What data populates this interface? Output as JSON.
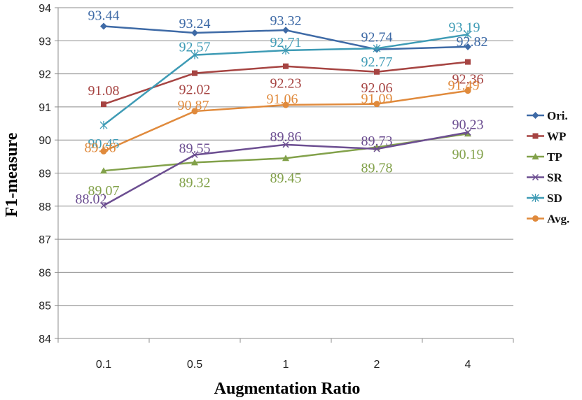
{
  "chart_data": {
    "type": "line",
    "title": "",
    "xlabel": "Augmentation Ratio",
    "ylabel": "F1-measure",
    "categories": [
      "0.1",
      "0.5",
      "1",
      "2",
      "4"
    ],
    "ylim": [
      84,
      94
    ],
    "yticks": [
      "84",
      "85",
      "86",
      "87",
      "88",
      "89",
      "90",
      "91",
      "92",
      "93",
      "94"
    ],
    "grid": "horizontal",
    "legend_position": "right",
    "series": [
      {
        "name": "Ori.",
        "color": "#3E6AA6",
        "marker": "diamond",
        "values": [
          93.44,
          93.24,
          93.32,
          92.74,
          92.82
        ],
        "labels": [
          "93.44",
          "93.24",
          "93.32",
          "92.74",
          "92.82"
        ]
      },
      {
        "name": "WP",
        "color": "#A64442",
        "marker": "square",
        "values": [
          91.08,
          92.02,
          92.23,
          92.06,
          92.36
        ],
        "labels": [
          "91.08",
          "92.02",
          "92.23",
          "92.06",
          "92.36"
        ]
      },
      {
        "name": "TP",
        "color": "#82A14A",
        "marker": "triangle",
        "values": [
          89.07,
          89.32,
          89.45,
          89.78,
          90.19
        ],
        "labels": [
          "89.07",
          "89.32",
          "89.45",
          "89.78",
          "90.19"
        ]
      },
      {
        "name": "SR",
        "color": "#6C4E91",
        "marker": "x",
        "values": [
          88.02,
          89.55,
          89.86,
          89.73,
          90.23
        ],
        "labels": [
          "88.02",
          "89.55",
          "89.86",
          "89.73",
          "90.23"
        ]
      },
      {
        "name": "SD",
        "color": "#3E9BB5",
        "marker": "star",
        "values": [
          90.45,
          92.57,
          92.71,
          92.77,
          93.19
        ],
        "labels": [
          "90.45",
          "92.57",
          "92.71",
          "92.77",
          "93.19"
        ]
      },
      {
        "name": "Avg.",
        "color": "#E08A3C",
        "marker": "circle",
        "values": [
          89.66,
          90.87,
          91.06,
          91.09,
          91.49
        ],
        "labels": [
          "89.66",
          "90.87",
          "91.06",
          "91.09",
          "91.49"
        ]
      }
    ]
  }
}
